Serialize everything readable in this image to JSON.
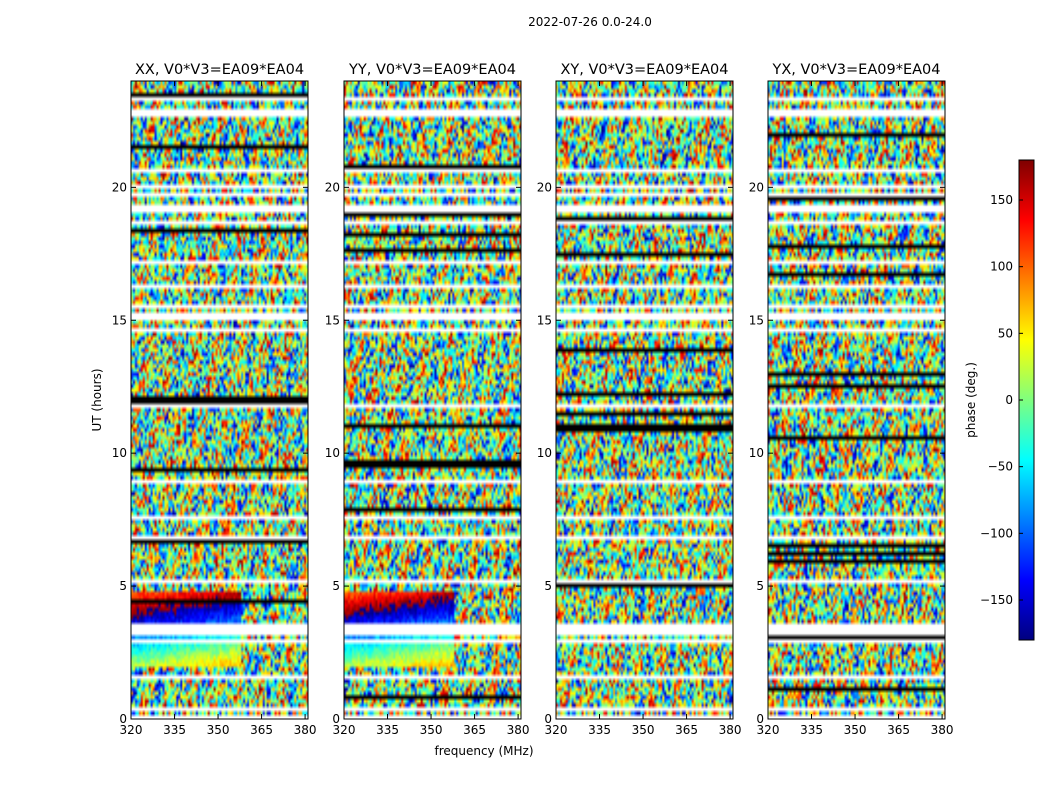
{
  "figure": {
    "suptitle": "2022-07-26 0.0-24.0",
    "xlabel": "frequency (MHz)",
    "ylabel": "UT (hours)",
    "colorbar": {
      "label": "phase (deg.)",
      "range": [
        -180,
        180
      ],
      "ticks": [
        "150",
        "100",
        "50",
        "0",
        "−50",
        "−100",
        "−150"
      ],
      "tick_values": [
        150,
        100,
        50,
        0,
        -50,
        -100,
        -150
      ],
      "colormap": [
        "#00007f",
        "#0000ff",
        "#007fff",
        "#00ffff",
        "#7fff7f",
        "#ffff00",
        "#ff7f00",
        "#ff0000",
        "#7f0000"
      ]
    }
  },
  "chart_data": [
    {
      "type": "heatmap",
      "title": "XX, V0*V3=EA09*EA04",
      "xlim": [
        320,
        381
      ],
      "ylim": [
        0,
        24
      ],
      "x_ticks": [
        "320",
        "335",
        "350",
        "365",
        "380"
      ],
      "x_tick_values": [
        320,
        335,
        350,
        365,
        380
      ],
      "y_ticks": [
        "0",
        "5",
        "10",
        "15",
        "20"
      ],
      "y_tick_values": [
        0,
        5,
        10,
        15,
        20
      ],
      "z": "phase (deg.)"
    },
    {
      "type": "heatmap",
      "title": "YY, V0*V3=EA09*EA04",
      "xlim": [
        320,
        381
      ],
      "ylim": [
        0,
        24
      ],
      "x_ticks": [
        "320",
        "335",
        "350",
        "365",
        "380"
      ],
      "x_tick_values": [
        320,
        335,
        350,
        365,
        380
      ],
      "y_ticks": [
        "0",
        "5",
        "10",
        "15",
        "20"
      ],
      "y_tick_values": [
        0,
        5,
        10,
        15,
        20
      ],
      "z": "phase (deg.)"
    },
    {
      "type": "heatmap",
      "title": "XY, V0*V3=EA09*EA04",
      "xlim": [
        320,
        381
      ],
      "ylim": [
        0,
        24
      ],
      "x_ticks": [
        "320",
        "335",
        "350",
        "365",
        "380"
      ],
      "x_tick_values": [
        320,
        335,
        350,
        365,
        380
      ],
      "y_ticks": [
        "0",
        "5",
        "10",
        "15",
        "20"
      ],
      "y_tick_values": [
        0,
        5,
        10,
        15,
        20
      ],
      "z": "phase (deg.)"
    },
    {
      "type": "heatmap",
      "title": "YX, V0*V3=EA09*EA04",
      "xlim": [
        320,
        381
      ],
      "ylim": [
        0,
        24
      ],
      "x_ticks": [
        "320",
        "335",
        "350",
        "365",
        "380"
      ],
      "x_tick_values": [
        320,
        335,
        350,
        365,
        380
      ],
      "y_ticks": [
        "0",
        "5",
        "10",
        "15",
        "20"
      ],
      "y_tick_values": [
        0,
        5,
        10,
        15,
        20
      ],
      "z": "phase (deg.)"
    }
  ]
}
